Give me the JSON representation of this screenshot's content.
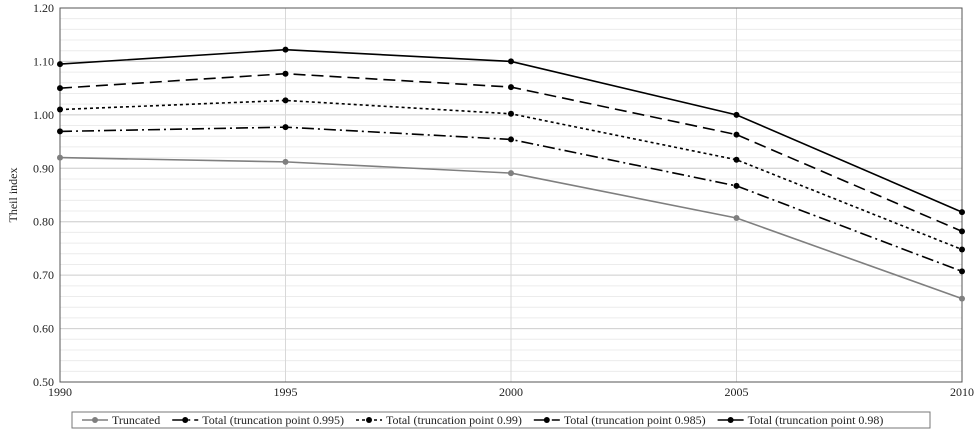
{
  "chart_data": {
    "type": "line",
    "title": "",
    "xlabel": "",
    "ylabel": "Theil index",
    "x": [
      1990,
      1995,
      2000,
      2005,
      2010
    ],
    "x_tick_labels": [
      "1990",
      "1995",
      "2000",
      "2005",
      "2010"
    ],
    "ylim": [
      0.5,
      1.2
    ],
    "y_ticks": [
      0.5,
      0.6,
      0.7,
      0.8,
      0.9,
      1.0,
      1.1,
      1.2
    ],
    "y_tick_labels": [
      "0.50",
      "0.60",
      "0.70",
      "0.80",
      "0.90",
      "1.00",
      "1.10",
      "1.20"
    ],
    "grid": true,
    "legend_position": "bottom",
    "series": [
      {
        "name": "Truncated",
        "values": [
          0.92,
          0.912,
          0.891,
          0.807,
          0.656
        ],
        "color": "#7f7f7f",
        "dash": "solid"
      },
      {
        "name": "Total (truncation point 0.995)",
        "values": [
          0.969,
          0.977,
          0.954,
          0.867,
          0.707
        ],
        "color": "#000000",
        "dash": "dashdot"
      },
      {
        "name": "Total (truncation point 0.99)",
        "values": [
          1.01,
          1.027,
          1.002,
          0.916,
          0.748
        ],
        "color": "#000000",
        "dash": "dotted"
      },
      {
        "name": "Total (truncation point 0.985)",
        "values": [
          1.05,
          1.077,
          1.052,
          0.963,
          0.782
        ],
        "color": "#000000",
        "dash": "dashed"
      },
      {
        "name": "Total (truncation point 0.98)",
        "values": [
          1.095,
          1.122,
          1.1,
          1.0,
          0.818
        ],
        "color": "#000000",
        "dash": "solid"
      }
    ]
  }
}
